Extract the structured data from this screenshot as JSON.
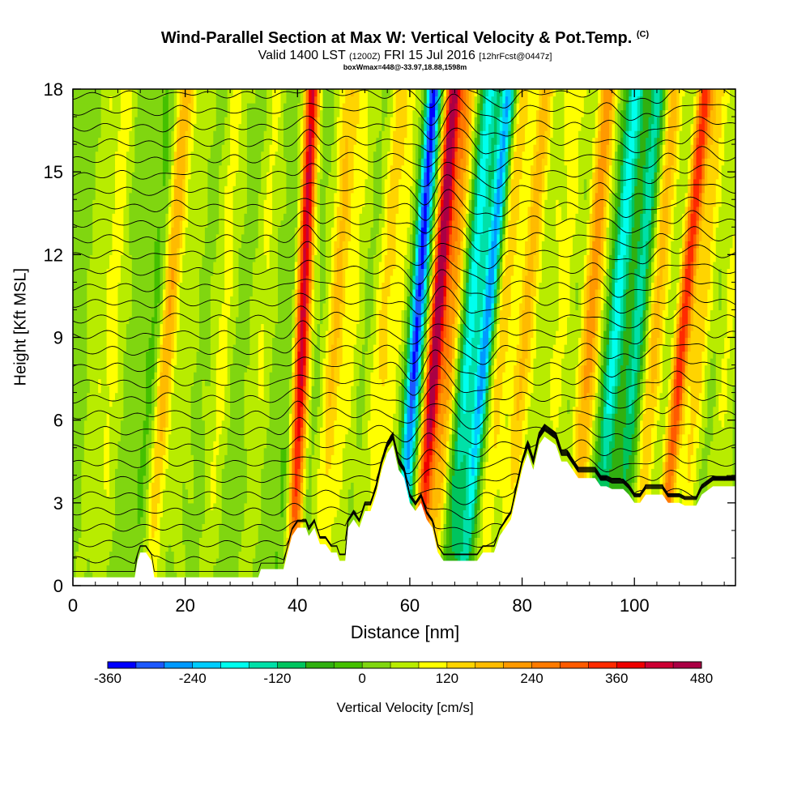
{
  "header": {
    "title": "Wind-Parallel Section at Max W: Vertical Velocity & Pot.Temp.",
    "copyright": "(C)",
    "valid_main": "Valid 1400 LST",
    "valid_utc": "(1200Z)",
    "valid_date": "FRI 15 Jul 2016",
    "forecast": "[12hrFcst@0447z]",
    "box_info": "boxWmax=448@-33.97,18.88,1598m"
  },
  "chart_data": {
    "type": "heatmap",
    "xlabel": "Distance [nm]",
    "ylabel": "Height [Kft MSL]",
    "xlim": [
      0,
      118
    ],
    "ylim": [
      0,
      18
    ],
    "x_ticks": [
      0,
      20,
      40,
      60,
      80,
      100
    ],
    "y_ticks": [
      0,
      3,
      6,
      9,
      12,
      15,
      18
    ],
    "colorbar": {
      "label": "Vertical Velocity [cm/s]",
      "min": -360,
      "max": 480,
      "step": 40,
      "tick_labels": [
        "-360",
        "-240",
        "-120",
        "0",
        "120",
        "240",
        "360",
        "480"
      ],
      "colors": [
        "#0000ff",
        "#1c58ff",
        "#0099ff",
        "#00ccff",
        "#00ffee",
        "#00e0a8",
        "#00c45e",
        "#30b010",
        "#44c000",
        "#80d610",
        "#b8ec00",
        "#ffff00",
        "#ffd400",
        "#ffbb00",
        "#ff9900",
        "#ff7a00",
        "#ff5a00",
        "#ff2a00",
        "#ee0000",
        "#cc0033",
        "#aa0044"
      ]
    },
    "vertical_velocity_bands": [
      {
        "x": 2,
        "w": 40,
        "tilt": 0.25
      },
      {
        "x": 5,
        "w": 70,
        "tilt": 0.25
      },
      {
        "x": 12,
        "w": -80,
        "tilt": 0.35
      },
      {
        "x": 13.5,
        "w": 200,
        "tilt": 0.35
      },
      {
        "x": 18,
        "w": 40,
        "tilt": 0.3
      },
      {
        "x": 24,
        "w": 70,
        "tilt": 0.3
      },
      {
        "x": 31,
        "w": 60,
        "tilt": 0.3
      },
      {
        "x": 37,
        "w": -60,
        "tilt": 0.3
      },
      {
        "x": 39,
        "w": 440,
        "tilt": 0.2
      },
      {
        "x": 44,
        "w": 140,
        "tilt": 0.3
      },
      {
        "x": 47,
        "w": 60,
        "tilt": 0.3
      },
      {
        "x": 52,
        "w": 100,
        "tilt": 0.35
      },
      {
        "x": 55,
        "w": 60,
        "tilt": 0.3
      },
      {
        "x": 58,
        "w": -360,
        "tilt": 0.35
      },
      {
        "x": 61.5,
        "w": 448,
        "tilt": 0.35
      },
      {
        "x": 64,
        "w": 200,
        "tilt": 0.35
      },
      {
        "x": 67,
        "w": -200,
        "tilt": 0.4
      },
      {
        "x": 69.5,
        "w": -280,
        "tilt": 0.45
      },
      {
        "x": 73,
        "w": 120,
        "tilt": 0.4
      },
      {
        "x": 77,
        "w": 150,
        "tilt": 0.4
      },
      {
        "x": 81,
        "w": 40,
        "tilt": 0.4
      },
      {
        "x": 84,
        "w": 60,
        "tilt": 0.35
      },
      {
        "x": 89,
        "w": 200,
        "tilt": 0.35
      },
      {
        "x": 93,
        "w": -200,
        "tilt": 0.4
      },
      {
        "x": 97,
        "w": -160,
        "tilt": 0.4
      },
      {
        "x": 100,
        "w": 160,
        "tilt": 0.4
      },
      {
        "x": 104.5,
        "w": 320,
        "tilt": 0.45
      },
      {
        "x": 108,
        "w": 120,
        "tilt": 0.4
      },
      {
        "x": 114,
        "w": 60,
        "tilt": 0.3
      }
    ],
    "terrain_height_kft": [
      [
        0,
        0.3
      ],
      [
        11,
        0.3
      ],
      [
        11.5,
        0.9
      ],
      [
        12,
        1.2
      ],
      [
        13,
        1.2
      ],
      [
        14,
        0.9
      ],
      [
        14.5,
        0.3
      ],
      [
        33,
        0.3
      ],
      [
        33.5,
        0.6
      ],
      [
        37.5,
        0.6
      ],
      [
        38,
        1.0
      ],
      [
        39,
        1.8
      ],
      [
        40,
        2.1
      ],
      [
        41.5,
        2.1
      ],
      [
        42,
        1.8
      ],
      [
        43,
        2.1
      ],
      [
        44,
        1.5
      ],
      [
        45,
        1.5
      ],
      [
        46,
        1.2
      ],
      [
        47,
        1.2
      ],
      [
        47.5,
        0.9
      ],
      [
        48.5,
        0.9
      ],
      [
        49,
        2.1
      ],
      [
        50,
        2.4
      ],
      [
        51,
        2.1
      ],
      [
        52,
        2.7
      ],
      [
        53,
        2.7
      ],
      [
        54,
        3.3
      ],
      [
        55,
        4.2
      ],
      [
        56,
        4.8
      ],
      [
        57,
        5.1
      ],
      [
        58,
        4.2
      ],
      [
        59,
        3.9
      ],
      [
        60,
        3.0
      ],
      [
        61,
        2.7
      ],
      [
        62,
        3.0
      ],
      [
        63,
        2.4
      ],
      [
        64,
        2.1
      ],
      [
        65,
        1.2
      ],
      [
        66,
        0.9
      ],
      [
        72,
        0.9
      ],
      [
        73,
        1.2
      ],
      [
        75,
        1.2
      ],
      [
        76,
        1.8
      ],
      [
        77,
        2.1
      ],
      [
        78,
        2.4
      ],
      [
        79,
        3.3
      ],
      [
        80,
        4.2
      ],
      [
        81,
        4.8
      ],
      [
        82,
        4.2
      ],
      [
        83,
        5.1
      ],
      [
        84,
        5.4
      ],
      [
        86,
        5.1
      ],
      [
        87,
        4.5
      ],
      [
        88,
        4.5
      ],
      [
        89,
        4.2
      ],
      [
        90,
        3.9
      ],
      [
        93,
        3.9
      ],
      [
        94,
        3.6
      ],
      [
        95,
        3.6
      ],
      [
        96,
        3.5
      ],
      [
        98,
        3.5
      ],
      [
        99,
        3.3
      ],
      [
        100,
        3.0
      ],
      [
        101,
        3.0
      ],
      [
        102,
        3.3
      ],
      [
        105,
        3.3
      ],
      [
        106,
        3.0
      ],
      [
        108,
        3.0
      ],
      [
        109,
        2.9
      ],
      [
        111,
        2.9
      ],
      [
        112,
        3.3
      ],
      [
        114,
        3.6
      ],
      [
        118,
        3.6
      ]
    ],
    "contour_field": "potential temperature (isentropes, black lines)"
  }
}
